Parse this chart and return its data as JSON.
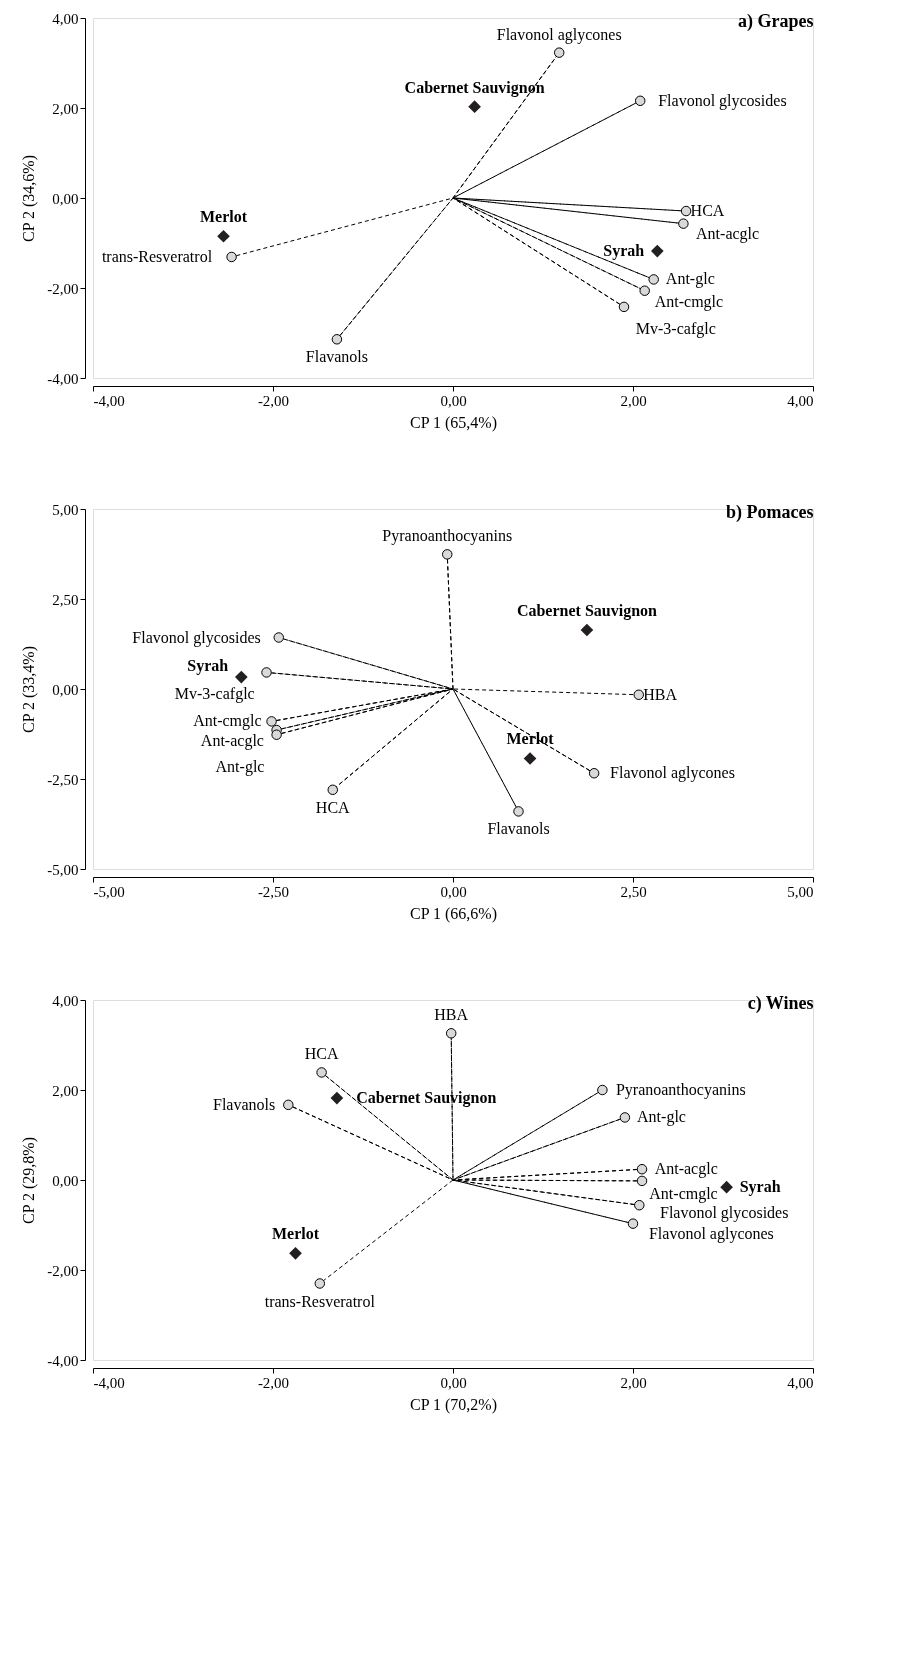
{
  "chart_data": [
    {
      "type": "scatter",
      "title": "a) Grapes",
      "xlabel": "CP 1 (65,4%)",
      "ylabel": "CP 2 (34,6%)",
      "xlim": [
        -4,
        4
      ],
      "ylim": [
        -4,
        4
      ],
      "xticks": [
        {
          "value": -4,
          "label": "-4,00"
        },
        {
          "value": -2,
          "label": "-2,00"
        },
        {
          "value": 0,
          "label": "0,00"
        },
        {
          "value": 2,
          "label": "2,00"
        },
        {
          "value": 4,
          "label": "4,00"
        }
      ],
      "yticks": [
        {
          "value": -4,
          "label": "-4,00"
        },
        {
          "value": -2,
          "label": "-2,00"
        },
        {
          "value": 0,
          "label": "0,00"
        },
        {
          "value": 2,
          "label": "2,00"
        },
        {
          "value": 4,
          "label": "4,00"
        }
      ],
      "grid": false,
      "series": [
        {
          "type": "line",
          "line_style": "dashed",
          "color": "#000000",
          "x": [
            0,
            1.18,
            0,
            2.08,
            0,
            2.59,
            0,
            2.56,
            0,
            2.23,
            0,
            2.13,
            0,
            1.9,
            0,
            -1.29,
            0,
            -2.46
          ],
          "values": [
            0,
            3.23,
            0,
            2.16,
            0,
            -0.29,
            0,
            -0.57,
            0,
            -1.81,
            0,
            -2.06,
            0,
            -2.42,
            0,
            -3.14,
            0,
            -1.31
          ]
        },
        {
          "marker": "circle",
          "color": "#d9d9d9",
          "x": [
            1.18,
            2.08,
            2.59,
            2.56,
            2.23,
            2.13,
            1.9,
            -1.29,
            -2.46
          ],
          "values": [
            3.23,
            2.16,
            -0.29,
            -0.57,
            -1.81,
            -2.06,
            -2.42,
            -3.14,
            -1.31
          ]
        },
        {
          "marker": "diamond",
          "color": "#231f20",
          "x": [
            0.24,
            -2.55,
            2.27
          ],
          "values": [
            2.03,
            -0.85,
            -1.18
          ]
        }
      ],
      "annotations": [
        {
          "text": "Flavonol aglycones",
          "x": 1.18,
          "y": 3.23
        },
        {
          "text": "Cabernet Sauvignon",
          "x": 0.24,
          "y": 2.03
        },
        {
          "text": "Flavonol glycosides",
          "x": 2.08,
          "y": 2.16
        },
        {
          "text": "HCA",
          "x": 2.59,
          "y": -0.29
        },
        {
          "text": "Ant-acglc",
          "x": 2.56,
          "y": -0.57
        },
        {
          "text": "Syrah",
          "x": 2.27,
          "y": -1.18
        },
        {
          "text": "Merlot",
          "x": -2.55,
          "y": -0.85
        },
        {
          "text": "trans-Resveratrol",
          "x": -2.46,
          "y": -1.31
        },
        {
          "text": "Ant-glc",
          "x": 2.23,
          "y": -1.81
        },
        {
          "text": "Ant-cmglc",
          "x": 2.13,
          "y": -2.06
        },
        {
          "text": "Mv-3-cafglc",
          "x": 1.9,
          "y": -2.42
        },
        {
          "text": "Flavanols",
          "x": -1.29,
          "y": -3.14
        }
      ]
    },
    {
      "type": "scatter",
      "title": "b) Pomaces",
      "xlabel": "CP 1 (66,6%)",
      "ylabel": "CP 2 (33,4%)",
      "xlim": [
        -5,
        5
      ],
      "ylim": [
        -5,
        5
      ],
      "xticks": [
        {
          "value": -5,
          "label": "-5,00"
        },
        {
          "value": -2.5,
          "label": "-2,50"
        },
        {
          "value": 0,
          "label": "0,00"
        },
        {
          "value": 2.5,
          "label": "2,50"
        },
        {
          "value": 5,
          "label": "5,00"
        }
      ],
      "yticks": [
        {
          "value": -5,
          "label": "-5,00"
        },
        {
          "value": -2.5,
          "label": "-2,50"
        },
        {
          "value": 0,
          "label": "0,00"
        },
        {
          "value": 2.5,
          "label": "2,50"
        },
        {
          "value": 5,
          "label": "5,00"
        }
      ],
      "grid": false,
      "series": [
        {
          "type": "line",
          "line_style": "dashed",
          "color": "#000000",
          "x": [
            0,
            -0.08,
            0,
            -2.42,
            0,
            -2.59,
            0,
            -2.52,
            0,
            -2.45,
            0,
            -2.45,
            0,
            -1.67,
            0,
            0.91,
            0,
            1.96,
            0,
            2.58
          ],
          "values": [
            0,
            3.74,
            0,
            1.43,
            0,
            0.46,
            0,
            -0.9,
            0,
            -1.14,
            0,
            -1.27,
            0,
            -2.8,
            0,
            -3.4,
            0,
            -2.34,
            0,
            -0.16
          ]
        },
        {
          "marker": "circle",
          "color": "#d9d9d9",
          "x": [
            -0.08,
            -2.42,
            -2.59,
            -2.52,
            -2.45,
            -2.45,
            -1.67,
            0.91,
            1.96,
            2.58
          ],
          "values": [
            3.74,
            1.43,
            0.46,
            -0.9,
            -1.14,
            -1.27,
            -2.8,
            -3.4,
            -2.34,
            -0.16
          ]
        },
        {
          "marker": "diamond",
          "color": "#231f20",
          "x": [
            1.86,
            -2.94,
            1.07
          ],
          "values": [
            1.64,
            0.33,
            -1.93
          ]
        }
      ],
      "annotations": [
        {
          "text": "Pyranoanthocyanins",
          "x": -0.08,
          "y": 3.74
        },
        {
          "text": "Cabernet Sauvignon",
          "x": 1.86,
          "y": 1.64
        },
        {
          "text": "Flavonol glycosides",
          "x": -2.42,
          "y": 1.43
        },
        {
          "text": "Mv-3-cafglc",
          "x": -2.59,
          "y": 0.46
        },
        {
          "text": "Syrah",
          "x": -2.94,
          "y": 0.33
        },
        {
          "text": "HBA",
          "x": 2.58,
          "y": -0.16
        },
        {
          "text": "Ant-cmglc",
          "x": -2.52,
          "y": -0.9
        },
        {
          "text": "Ant-acglc",
          "x": -2.45,
          "y": -1.14
        },
        {
          "text": "Ant-glc",
          "x": -2.45,
          "y": -1.27
        },
        {
          "text": "Merlot",
          "x": 1.07,
          "y": -1.93
        },
        {
          "text": "Flavonol aglycones",
          "x": 1.96,
          "y": -2.34
        },
        {
          "text": "HCA",
          "x": -1.67,
          "y": -2.8
        },
        {
          "text": "Flavanols",
          "x": 0.91,
          "y": -3.4
        }
      ]
    },
    {
      "type": "scatter",
      "title": "c) Wines",
      "xlabel": "CP 1 (70,2%)",
      "ylabel": "CP 2 (29,8%)",
      "xlim": [
        -4,
        4
      ],
      "ylim": [
        -4,
        4
      ],
      "xticks": [
        {
          "value": -4,
          "label": "-4,00"
        },
        {
          "value": -2,
          "label": "-2,00"
        },
        {
          "value": 0,
          "label": "0,00"
        },
        {
          "value": 2,
          "label": "2,00"
        },
        {
          "value": 4,
          "label": "4,00"
        }
      ],
      "yticks": [
        {
          "value": -4,
          "label": "-4,00"
        },
        {
          "value": -2,
          "label": "-2,00"
        },
        {
          "value": 0,
          "label": "0,00"
        },
        {
          "value": 2,
          "label": "2,00"
        },
        {
          "value": 4,
          "label": "4,00"
        }
      ],
      "grid": false,
      "series": [
        {
          "type": "line",
          "line_style": "dashed",
          "color": "#000000",
          "x": [
            0,
            -0.02,
            0,
            -1.46,
            0,
            -1.83,
            0,
            1.66,
            0,
            1.91,
            0,
            2.1,
            0,
            2.1,
            0,
            2.07,
            0,
            2.0,
            0,
            -1.48
          ],
          "values": [
            0,
            3.26,
            0,
            2.39,
            0,
            1.67,
            0,
            2.0,
            0,
            1.39,
            0,
            0.24,
            0,
            -0.02,
            0,
            -0.56,
            0,
            -0.97,
            0,
            -2.3
          ]
        },
        {
          "marker": "circle",
          "color": "#d9d9d9",
          "x": [
            -0.02,
            -1.46,
            -1.83,
            1.66,
            1.91,
            2.1,
            2.1,
            2.07,
            2.0,
            -1.48
          ],
          "values": [
            3.26,
            2.39,
            1.67,
            2.0,
            1.39,
            0.24,
            -0.02,
            -0.56,
            -0.97,
            -2.3
          ]
        },
        {
          "marker": "diamond",
          "color": "#231f20",
          "x": [
            -1.29,
            -1.75,
            3.04
          ],
          "values": [
            1.82,
            -1.63,
            -0.16
          ]
        }
      ],
      "annotations": [
        {
          "text": "HBA",
          "x": -0.02,
          "y": 3.26
        },
        {
          "text": "HCA",
          "x": -1.46,
          "y": 2.39
        },
        {
          "text": "Flavanols",
          "x": -1.83,
          "y": 1.67
        },
        {
          "text": "Pyranoanthocyanins",
          "x": 1.66,
          "y": 2.0
        },
        {
          "text": "Ant-glc",
          "x": 1.91,
          "y": 1.39
        },
        {
          "text": "Cabernet Sauvignon",
          "x": -1.29,
          "y": 1.82
        },
        {
          "text": "Ant-acglc",
          "x": 2.1,
          "y": 0.24
        },
        {
          "text": "Flavonol glycosides",
          "x": 2.1,
          "y": -0.02
        },
        {
          "text": "Syrah",
          "x": 3.04,
          "y": -0.16
        },
        {
          "text": "Flavonol aglycones",
          "x": 2.0,
          "y": -0.97
        },
        {
          "text": "Ant-cmglc",
          "x": 2.07,
          "y": -0.56
        },
        {
          "text": "Merlot",
          "x": -1.75,
          "y": -1.63
        },
        {
          "text": "trans-Resveratrol",
          "x": -1.48,
          "y": -2.3
        }
      ]
    }
  ]
}
